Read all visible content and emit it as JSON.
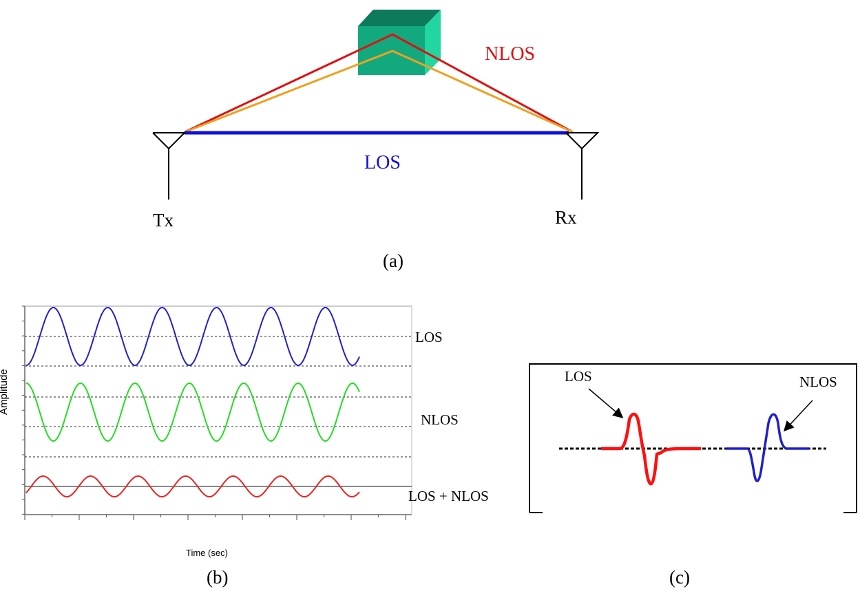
{
  "panel_a": {
    "caption": "(a)",
    "tx_label": "Tx",
    "rx_label": "Rx",
    "los_label": "LOS",
    "nlos_label": "NLOS",
    "colors": {
      "los": "#1010dd",
      "nlos_outer": "#e01010",
      "nlos_inner": "#f0a020",
      "obstacle_front": "#12a97f",
      "obstacle_top": "#0d7a5c",
      "obstacle_side": "#22d6a0"
    }
  },
  "panel_b": {
    "caption": "(b)",
    "ylabel": "Amplitude",
    "xlabel": "Time (sec)",
    "traces": [
      {
        "label": "LOS",
        "color": "#2020cc",
        "cycles": 6.3,
        "phase": "starts at peak"
      },
      {
        "label": "NLOS",
        "color": "#22dd22",
        "cycles": 6.3,
        "phase": "starts at trough"
      },
      {
        "label": "LOS + NLOS",
        "color": "#ee2020",
        "cycles": 7,
        "phase": "small amplitude"
      }
    ]
  },
  "panel_c": {
    "caption": "(c)",
    "los_label": "LOS",
    "nlos_label": "NLOS",
    "colors": {
      "los_pulse": "#ff1010",
      "nlos_pulse": "#2020cc"
    }
  }
}
